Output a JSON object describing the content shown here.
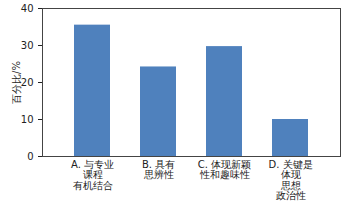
{
  "chart_data": {
    "type": "bar",
    "y_label": "百分比/%",
    "categories": [
      "A. 与专业\n课程\n有机结合",
      "B. 具有\n思辨性",
      "C. 体现新颖\n性和趣味性",
      "D. 关键是\n体现\n思想\n政治性"
    ],
    "values": [
      35.5,
      24.2,
      29.7,
      10
    ],
    "color": "#4f81bd",
    "ylim": [
      0,
      40
    ],
    "yticks": [
      0,
      10,
      20,
      30,
      40
    ],
    "grid": false
  }
}
